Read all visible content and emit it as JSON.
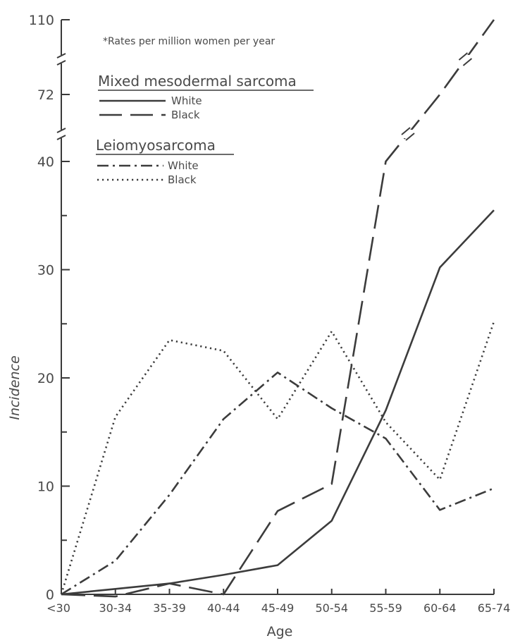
{
  "chart_data": {
    "type": "line",
    "xlabel": "Age",
    "ylabel": "Incidence",
    "note": "*Rates per million women per year",
    "categories": [
      "<30",
      "30-34",
      "35-39",
      "40-44",
      "45-49",
      "50-54",
      "55-59",
      "60-64",
      "65-74"
    ],
    "y_ticks": [
      "0",
      "10",
      "20",
      "30",
      "40",
      "72",
      "110"
    ],
    "y_axis_breaks": [
      "40-72",
      "72-110"
    ],
    "legend_groups": [
      {
        "heading": "Mixed mesodermal sarcoma",
        "entries": [
          {
            "label": "White",
            "series_index": 0
          },
          {
            "label": "Black",
            "series_index": 1
          }
        ]
      },
      {
        "heading": "Leiomyosarcoma",
        "entries": [
          {
            "label": "White",
            "series_index": 2
          },
          {
            "label": "Black",
            "series_index": 3
          }
        ]
      }
    ],
    "series": [
      {
        "name": "Mixed mesodermal sarcoma - White",
        "dash": "solid",
        "values": [
          0,
          0.5,
          1,
          1.8,
          2.7,
          6.8,
          17,
          30.2,
          35.5
        ]
      },
      {
        "name": "Mixed mesodermal sarcoma - Black",
        "dash": "long-dash",
        "values": [
          0,
          -0.2,
          1,
          0,
          7.7,
          10.2,
          40,
          72,
          110
        ]
      },
      {
        "name": "Leiomyosarcoma - White",
        "dash": "dash-dot",
        "values": [
          0,
          3.1,
          9.2,
          16.2,
          20.5,
          17.2,
          14.4,
          7.8,
          9.8
        ]
      },
      {
        "name": "Leiomyosarcoma - Black",
        "dash": "dotted",
        "values": [
          0,
          16.4,
          23.5,
          22.5,
          16.2,
          24.3,
          15.9,
          10.6,
          25.2
        ]
      }
    ],
    "colors": {
      "line": "#3c3c3c",
      "axis": "#3a3a3a",
      "text": "#4a4a4a",
      "background": "#ffffff"
    }
  }
}
